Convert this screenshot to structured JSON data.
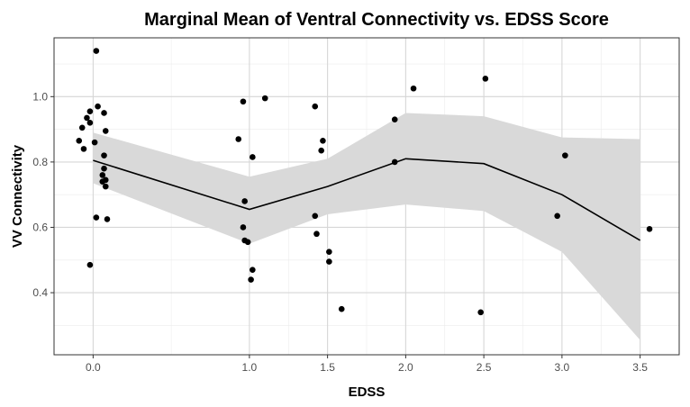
{
  "chart_data": {
    "type": "scatter",
    "title": "Marginal Mean of Ventral Connectivity vs. EDSS Score",
    "xlabel": "EDSS",
    "ylabel": "VV Connectivity",
    "x_ticks": [
      {
        "value": 0.0,
        "label": "0.0"
      },
      {
        "value": 1.0,
        "label": "1.0"
      },
      {
        "value": 1.5,
        "label": "1.5"
      },
      {
        "value": 2.0,
        "label": "2.0"
      },
      {
        "value": 2.5,
        "label": "2.5"
      },
      {
        "value": 3.0,
        "label": "3.0"
      },
      {
        "value": 3.5,
        "label": "3.5"
      }
    ],
    "y_ticks": [
      {
        "value": 0.4,
        "label": "0.4"
      },
      {
        "value": 0.6,
        "label": "0.6"
      },
      {
        "value": 0.8,
        "label": "0.8"
      },
      {
        "value": 1.0,
        "label": "1.0"
      }
    ],
    "xlim": [
      -0.25,
      3.75
    ],
    "ylim": [
      0.21,
      1.18
    ],
    "grid": true,
    "colors": {
      "panel": "#ffffff",
      "grid_major": "#d6d6d6",
      "grid_minor": "#ececec",
      "ribbon": "#d9d9d9",
      "line": "#000000",
      "points": "#000000",
      "border": "#333333"
    },
    "points": [
      {
        "x": 0.02,
        "y": 1.14
      },
      {
        "x": 0.03,
        "y": 0.97
      },
      {
        "x": -0.02,
        "y": 0.955
      },
      {
        "x": 0.07,
        "y": 0.95
      },
      {
        "x": -0.04,
        "y": 0.935
      },
      {
        "x": -0.02,
        "y": 0.92
      },
      {
        "x": -0.07,
        "y": 0.905
      },
      {
        "x": 0.08,
        "y": 0.895
      },
      {
        "x": -0.09,
        "y": 0.865
      },
      {
        "x": 0.01,
        "y": 0.86
      },
      {
        "x": -0.06,
        "y": 0.84
      },
      {
        "x": 0.07,
        "y": 0.82
      },
      {
        "x": 0.07,
        "y": 0.78
      },
      {
        "x": 0.06,
        "y": 0.76
      },
      {
        "x": 0.06,
        "y": 0.74
      },
      {
        "x": 0.08,
        "y": 0.745
      },
      {
        "x": 0.08,
        "y": 0.725
      },
      {
        "x": 0.02,
        "y": 0.63
      },
      {
        "x": 0.09,
        "y": 0.625
      },
      {
        "x": -0.02,
        "y": 0.485
      },
      {
        "x": 0.96,
        "y": 0.985
      },
      {
        "x": 0.93,
        "y": 0.87
      },
      {
        "x": 1.02,
        "y": 0.815
      },
      {
        "x": 0.97,
        "y": 0.68
      },
      {
        "x": 0.96,
        "y": 0.6
      },
      {
        "x": 0.97,
        "y": 0.56
      },
      {
        "x": 0.99,
        "y": 0.555
      },
      {
        "x": 1.02,
        "y": 0.47
      },
      {
        "x": 1.01,
        "y": 0.44
      },
      {
        "x": 1.1,
        "y": 0.995
      },
      {
        "x": 1.42,
        "y": 0.97
      },
      {
        "x": 1.47,
        "y": 0.865
      },
      {
        "x": 1.46,
        "y": 0.835
      },
      {
        "x": 1.42,
        "y": 0.635
      },
      {
        "x": 1.43,
        "y": 0.58
      },
      {
        "x": 1.51,
        "y": 0.525
      },
      {
        "x": 1.51,
        "y": 0.495
      },
      {
        "x": 1.59,
        "y": 0.35
      },
      {
        "x": 1.93,
        "y": 0.93
      },
      {
        "x": 1.93,
        "y": 0.8
      },
      {
        "x": 2.05,
        "y": 1.025
      },
      {
        "x": 2.51,
        "y": 1.055
      },
      {
        "x": 2.48,
        "y": 0.34
      },
      {
        "x": 3.02,
        "y": 0.82
      },
      {
        "x": 2.97,
        "y": 0.635
      },
      {
        "x": 3.56,
        "y": 0.595
      }
    ],
    "fit_line": [
      {
        "x": 0.0,
        "y": 0.805
      },
      {
        "x": 1.0,
        "y": 0.655
      },
      {
        "x": 1.5,
        "y": 0.725
      },
      {
        "x": 2.0,
        "y": 0.81
      },
      {
        "x": 2.5,
        "y": 0.795
      },
      {
        "x": 3.0,
        "y": 0.7
      },
      {
        "x": 3.5,
        "y": 0.56
      }
    ],
    "ribbon_upper": [
      {
        "x": 0.0,
        "y": 0.89
      },
      {
        "x": 1.0,
        "y": 0.755
      },
      {
        "x": 1.5,
        "y": 0.81
      },
      {
        "x": 2.0,
        "y": 0.95
      },
      {
        "x": 2.5,
        "y": 0.94
      },
      {
        "x": 3.0,
        "y": 0.875
      },
      {
        "x": 3.5,
        "y": 0.87
      }
    ],
    "ribbon_lower": [
      {
        "x": 0.0,
        "y": 0.735
      },
      {
        "x": 1.0,
        "y": 0.55
      },
      {
        "x": 1.5,
        "y": 0.64
      },
      {
        "x": 2.0,
        "y": 0.67
      },
      {
        "x": 2.5,
        "y": 0.65
      },
      {
        "x": 3.0,
        "y": 0.525
      },
      {
        "x": 3.5,
        "y": 0.255
      }
    ]
  }
}
